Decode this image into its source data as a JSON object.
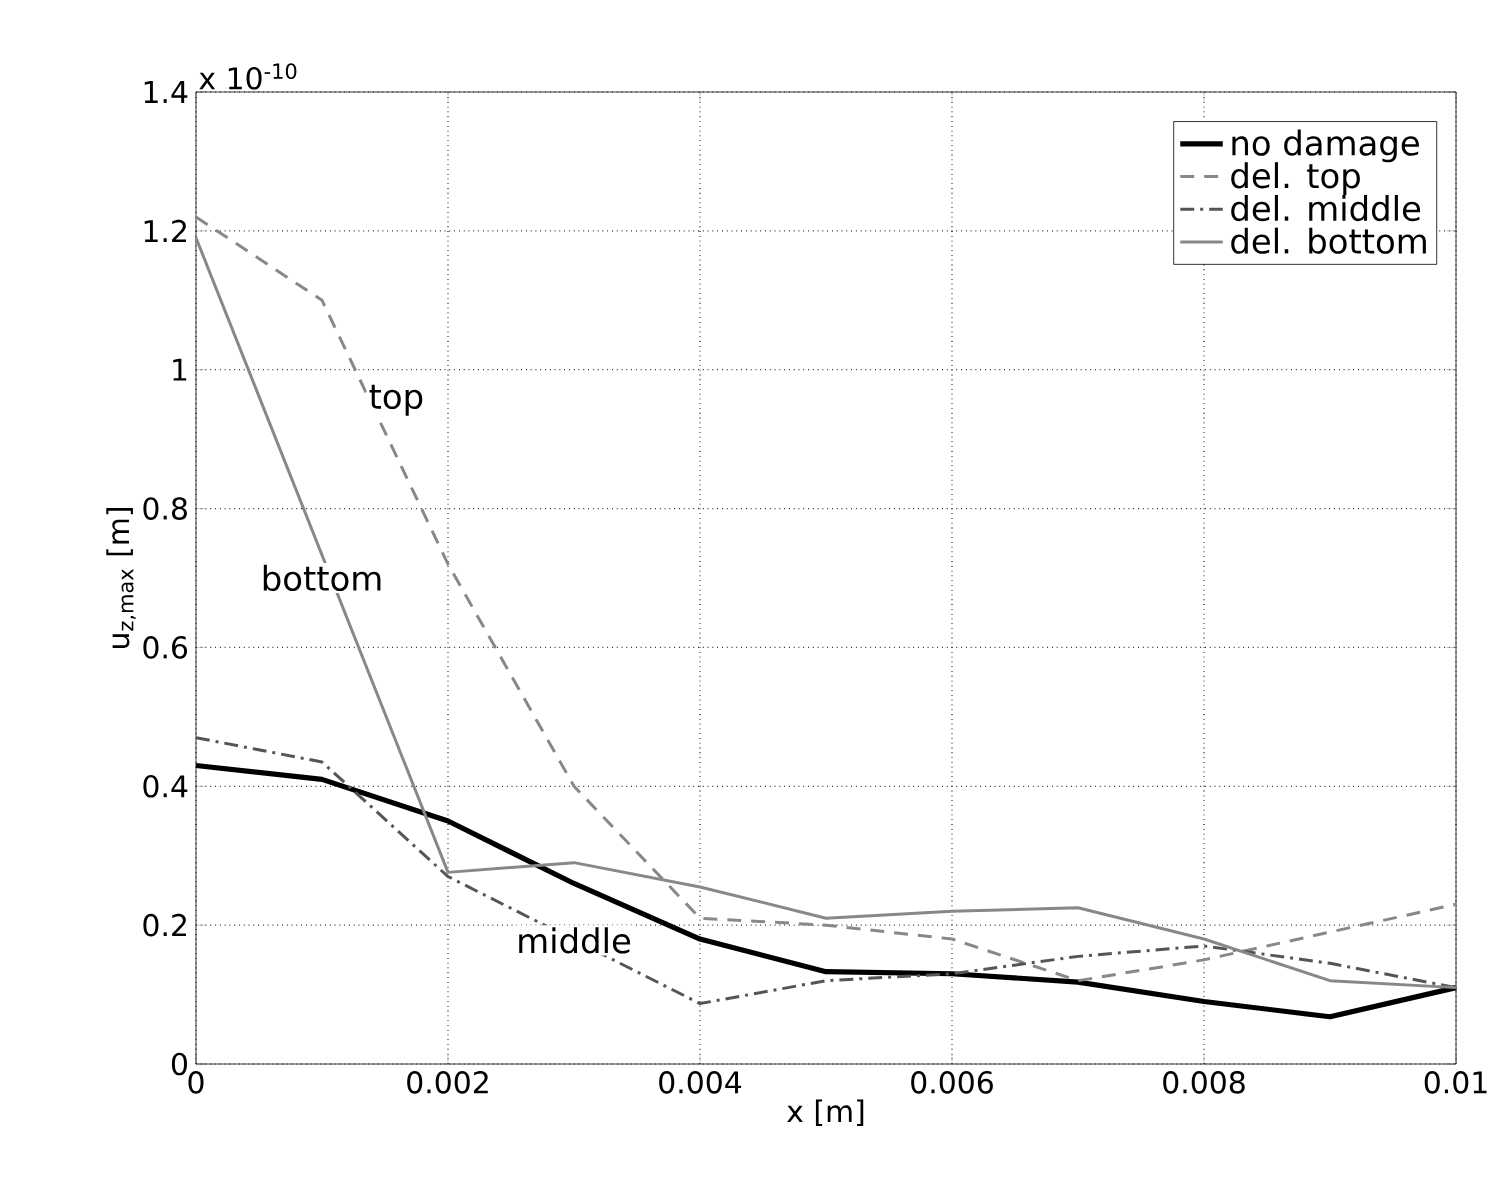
{
  "chart_data": {
    "type": "line",
    "xlabel": "x [m]",
    "ylabel": "u$_{z,max}$ [m]",
    "x": [
      0,
      0.001,
      0.002,
      0.003,
      0.004,
      0.005,
      0.006,
      0.007,
      0.008,
      0.009,
      0.01
    ],
    "series": [
      {
        "name": "no damage",
        "color": "#000000",
        "line_style": "solid",
        "values": [
          0.43,
          0.41,
          0.35,
          0.26,
          0.18,
          0.133,
          0.13,
          0.118,
          0.09,
          0.068,
          0.11
        ]
      },
      {
        "name": "del. top",
        "color": "#888888",
        "line_style": "dashed",
        "values": [
          1.22,
          1.1,
          0.72,
          0.4,
          0.21,
          0.2,
          0.18,
          0.12,
          0.15,
          0.19,
          0.23
        ]
      },
      {
        "name": "del. middle",
        "color": "#555555",
        "line_style": "dashdot",
        "values": [
          0.47,
          0.435,
          0.27,
          null,
          0.087,
          0.12,
          0.13,
          0.155,
          0.17,
          0.145,
          0.11
        ]
      },
      {
        "name": "del. bottom",
        "color": "#888888",
        "line_style": "solid",
        "values": [
          1.19,
          null,
          0.276,
          0.29,
          0.255,
          0.21,
          0.22,
          0.225,
          0.18,
          0.12,
          0.11
        ]
      }
    ],
    "xlim": [
      0,
      0.01
    ],
    "ylim": [
      0,
      1.4
    ],
    "xticks": [
      0,
      0.002,
      0.004,
      0.006,
      0.008,
      0.01
    ],
    "yticks": [
      0,
      0.2,
      0.4,
      0.6,
      0.8,
      1,
      1.2,
      1.4
    ],
    "grid": true,
    "legend": "top right",
    "marker": "none",
    "annotations": [
      "x 10$^{-10}$",
      {
        "text": "top",
        "x": 0.00159,
        "y": 0.956
      },
      {
        "text": "bottom",
        "x": 0.001,
        "y": 0.7
      },
      {
        "text": "middle",
        "x": 0.003,
        "y": 0.178
      }
    ]
  }
}
